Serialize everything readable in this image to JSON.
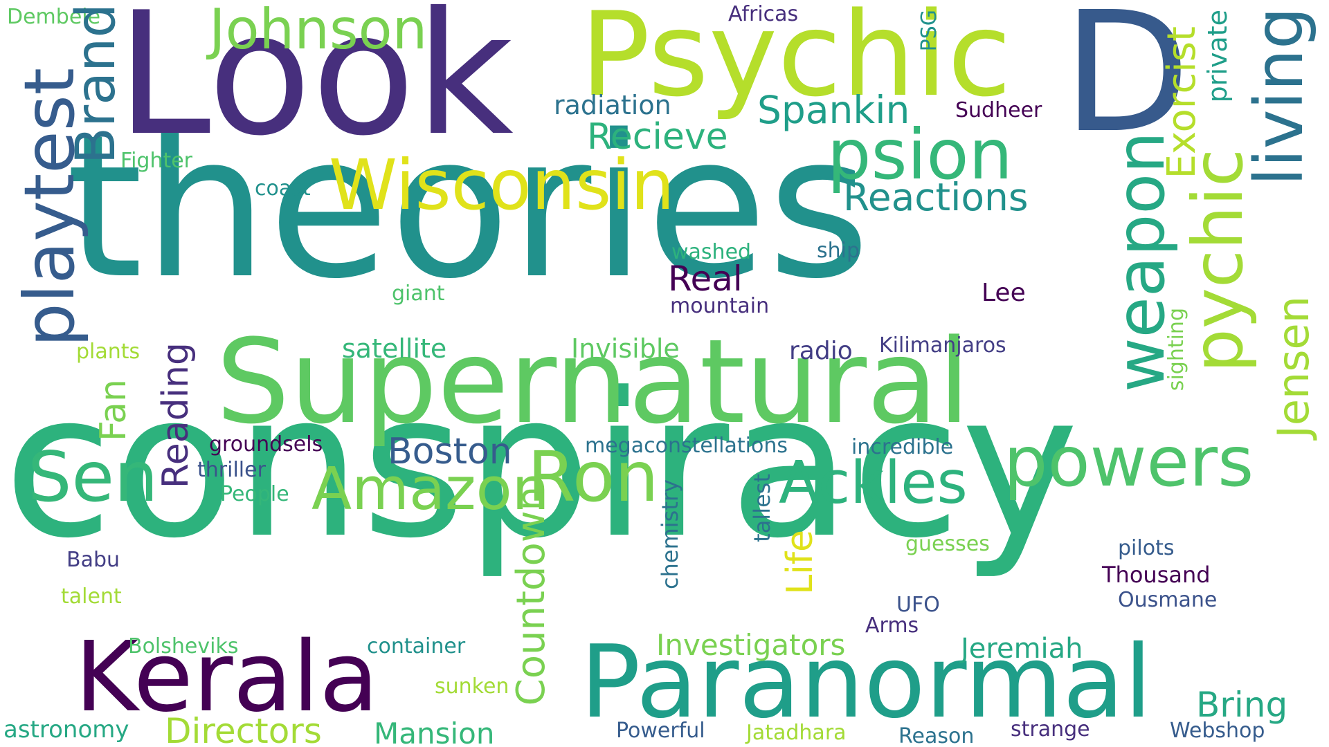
{
  "words": {
    "theories": "theories",
    "conspiracy": "conspiracy",
    "look": "Look",
    "d": "D",
    "psychic": "Psychic",
    "supernatural": "Supernatural",
    "paranormal": "Paranormal",
    "kerala": "Kerala",
    "wisconsin": "Wisconsin",
    "psion": "psion",
    "powers": "powers",
    "ron": "Ron",
    "ackles": "Ackles",
    "amazon": "Amazon",
    "sen": "Sen",
    "johnson": "Johnson",
    "spankin": "Spankin",
    "recieve": "Recieve",
    "reactions": "Reactions",
    "boston": "Boston",
    "real": "Real",
    "directors": "Directors",
    "mansion": "Mansion",
    "investigators": "Investigators",
    "jeremiah": "Jeremiah",
    "bring": "Bring",
    "radiation": "radiation",
    "satellite": "satellite",
    "invisible": "Invisible",
    "radio": "radio",
    "kilimanjaros": "Kilimanjaros",
    "lee": "Lee",
    "sudheer": "Sudheer",
    "fighter": "Fighter",
    "coast": "coast",
    "washed": "washed",
    "ship": "ship",
    "giant": "giant",
    "mountain": "mountain",
    "plants": "plants",
    "groundsels": "groundsels",
    "megaconstellations": "megaconstellations",
    "incredible": "incredible",
    "thriller": "thriller",
    "people": "People",
    "babu": "Babu",
    "talent": "talent",
    "bolsheviks": "Bolsheviks",
    "container": "container",
    "sunken": "sunken",
    "astronomy": "astronomy",
    "powerful": "Powerful",
    "jatadhara": "Jatadhara",
    "reason": "Reason",
    "strange": "strange",
    "webshop": "Webshop",
    "guesses": "guesses",
    "pilots": "pilots",
    "thousand": "Thousand",
    "ousmane": "Ousmane",
    "ufo": "UFO",
    "arms": "Arms",
    "dembele": "Dembele",
    "africas": "Africas",
    "playtest": "playtest",
    "brand": "Brand",
    "weapon": "weapon",
    "pychic": "pychic",
    "living": "living",
    "jensen": "Jensen",
    "exorcist": "Exorcist",
    "private": "private",
    "psg": "PSG",
    "sighting": "sighting",
    "fan": "Fan",
    "reading": "Reading",
    "countdown": "Countdown",
    "life": "Life",
    "chemistry": "chemistry",
    "tallest": "tallest"
  },
  "colors": {
    "dark_purple": "#440154",
    "indigo": "#472f7d",
    "purple_blue": "#433e85",
    "slate_blue": "#365c8d",
    "steel_blue": "#3b528b",
    "teal_blue": "#2c728e",
    "teal": "#21918c",
    "sea_green": "#1f9e89",
    "green": "#35b779",
    "light_green": "#5ec962",
    "lime": "#7ad151",
    "yellow_green": "#b5de2b",
    "yellow": "#e0e21a"
  }
}
